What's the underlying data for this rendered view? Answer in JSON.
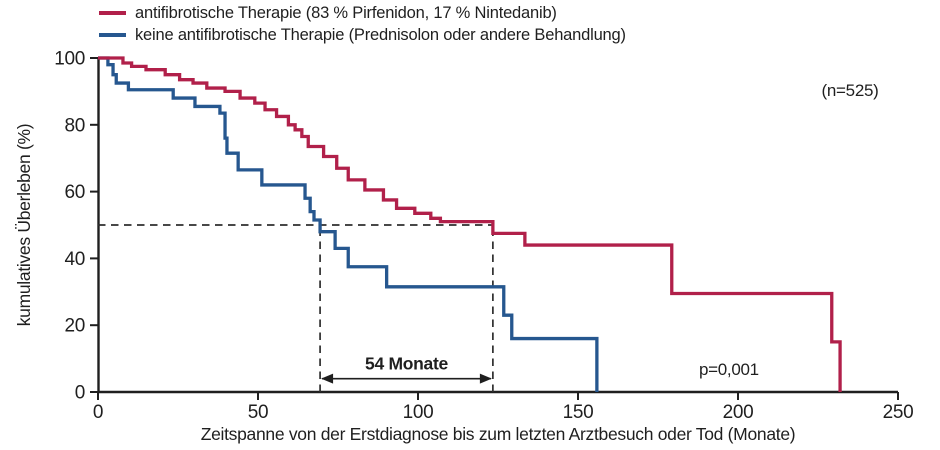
{
  "chart_data": {
    "type": "line",
    "subtype": "kaplan_meier_step_survival",
    "title": "",
    "xlabel": "Zeitspanne von der Erstdiagnose bis zum letzten Arztbesuch oder Tod (Monate)",
    "ylabel": "kumulatives Überleben (%)",
    "xlim": [
      0,
      250
    ],
    "ylim": [
      0,
      100
    ],
    "xticks": [
      0,
      50,
      100,
      150,
      200,
      250
    ],
    "yticks": [
      0,
      20,
      40,
      60,
      80,
      100
    ],
    "grid": false,
    "legend_position": "top-left",
    "axis_color": "#1f1f1f",
    "series": [
      {
        "name": "antifibrotische Therapie (83 % Pirfenidon, 17 % Nintedanib)",
        "color": "#b1204a",
        "steps": [
          [
            0,
            100
          ],
          [
            7.8,
            98.5
          ],
          [
            10.5,
            97.5
          ],
          [
            15,
            96.5
          ],
          [
            21,
            95
          ],
          [
            25.5,
            93.5
          ],
          [
            29.7,
            92.5
          ],
          [
            34,
            91
          ],
          [
            39.7,
            90
          ],
          [
            44.4,
            88
          ],
          [
            49,
            86.5
          ],
          [
            52.2,
            84.5
          ],
          [
            55.8,
            82.5
          ],
          [
            59.5,
            80
          ],
          [
            61.6,
            78.5
          ],
          [
            63.7,
            76.5
          ],
          [
            65.7,
            73.5
          ],
          [
            70.5,
            70.5
          ],
          [
            74.6,
            67
          ],
          [
            78.2,
            63.5
          ],
          [
            83.4,
            60.5
          ],
          [
            89.2,
            57.5
          ],
          [
            93.3,
            55
          ],
          [
            99,
            53.5
          ],
          [
            104,
            52
          ],
          [
            107,
            51
          ],
          [
            123.4,
            47.5
          ],
          [
            133.4,
            44
          ],
          [
            179.3,
            29.5
          ],
          [
            229.3,
            15
          ],
          [
            231.9,
            0
          ]
        ]
      },
      {
        "name": "keine antifibrotische Therapie (Prednisolon oder andere Behandlung)",
        "color": "#26578f",
        "steps": [
          [
            0,
            100
          ],
          [
            3.1,
            98
          ],
          [
            4.7,
            95
          ],
          [
            5.7,
            92.5
          ],
          [
            9.5,
            90.5
          ],
          [
            23.5,
            88
          ],
          [
            30.3,
            85.5
          ],
          [
            38.1,
            83.5
          ],
          [
            39.7,
            76
          ],
          [
            40.3,
            71.5
          ],
          [
            43.8,
            66.5
          ],
          [
            51.2,
            62
          ],
          [
            64.7,
            58
          ],
          [
            66.3,
            54
          ],
          [
            67.5,
            51.5
          ],
          [
            69.4,
            48
          ],
          [
            74.1,
            43
          ],
          [
            78.2,
            37.5
          ],
          [
            90.2,
            31.5
          ],
          [
            126.8,
            23
          ],
          [
            129.3,
            16
          ],
          [
            155.9,
            0
          ]
        ]
      }
    ],
    "annotations": {
      "sample_size": "(n=525)",
      "p_value": "p=0,001",
      "median_gap": {
        "label": "54 Monate",
        "y_percent": 50,
        "x1_months": 69.4,
        "x2_months": 123.4,
        "arrow_y_percent": 4
      }
    }
  }
}
